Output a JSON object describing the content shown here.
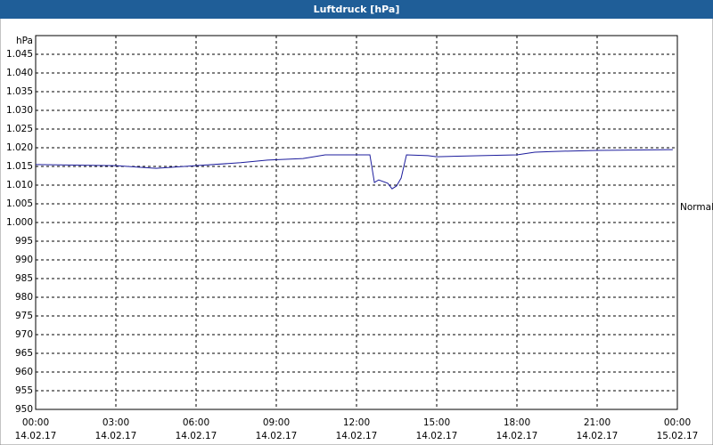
{
  "chart_data": {
    "type": "line",
    "title": "Luftdruck [hPa]",
    "y_label": "hPa",
    "x": [
      0,
      3,
      4.5,
      6,
      7.67,
      8.67,
      10,
      10.83,
      12,
      12.5,
      12.67,
      12.83,
      13.17,
      13.33,
      13.5,
      13.67,
      13.87,
      14.67,
      15,
      16.67,
      18,
      18.67,
      19.33,
      21,
      23.83
    ],
    "series": [
      {
        "name": "Normal",
        "color": "#1c1c9c",
        "values": [
          1015.5,
          1015.2,
          1014.5,
          1015.2,
          1016.0,
          1016.7,
          1017.1,
          1018.1,
          1018.1,
          1018.1,
          1010.7,
          1011.4,
          1010.5,
          1009.0,
          1009.8,
          1011.9,
          1018.1,
          1017.9,
          1017.6,
          1017.9,
          1018.1,
          1018.8,
          1019.0,
          1019.3,
          1019.5
        ]
      }
    ],
    "xlim": [
      0,
      24
    ],
    "xticks": [
      {
        "value": 0,
        "label": "00:00"
      },
      {
        "value": 3,
        "label": "03:00"
      },
      {
        "value": 6,
        "label": "06:00"
      },
      {
        "value": 9,
        "label": "09:00"
      },
      {
        "value": 12,
        "label": "12:00"
      },
      {
        "value": 15,
        "label": "15:00"
      },
      {
        "value": 18,
        "label": "18:00"
      },
      {
        "value": 21,
        "label": "21:00"
      },
      {
        "value": 24,
        "label": "00:00"
      }
    ],
    "xtick_dates": [
      "14.02.17",
      "14.02.17",
      "14.02.17",
      "14.02.17",
      "14.02.17",
      "14.02.17",
      "14.02.17",
      "14.02.17",
      "15.02.17"
    ],
    "ylim": [
      950,
      1050
    ],
    "yticks": [
      950,
      955,
      960,
      965,
      970,
      975,
      980,
      985,
      990,
      995,
      {
        "value": 1000,
        "label": "1.000"
      },
      {
        "value": 1005,
        "label": "1.005"
      },
      {
        "value": 1010,
        "label": "1.010"
      },
      {
        "value": 1015,
        "label": "1.015"
      },
      {
        "value": 1020,
        "label": "1.020"
      },
      {
        "value": 1025,
        "label": "1.025"
      },
      {
        "value": 1030,
        "label": "1.030"
      },
      {
        "value": 1035,
        "label": "1.035"
      },
      {
        "value": 1040,
        "label": "1.040"
      },
      {
        "value": 1045,
        "label": "1.045"
      }
    ],
    "grid": true
  }
}
